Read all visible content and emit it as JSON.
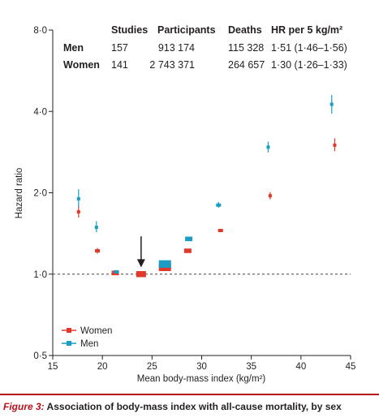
{
  "chart_data": {
    "type": "scatter",
    "xlabel": "Mean body-mass index (kg/m²)",
    "ylabel": "Hazard ratio",
    "xlim": [
      15,
      45
    ],
    "ylim": [
      0.5,
      8.0
    ],
    "yscale": "log",
    "xticks": [
      15,
      20,
      25,
      30,
      35,
      40,
      45
    ],
    "yticks": [
      {
        "value": 0.5,
        "label": "0·5"
      },
      {
        "value": 1.0,
        "label": "1·0"
      },
      {
        "value": 2.0,
        "label": "2·0"
      },
      {
        "value": 4.0,
        "label": "4·0"
      },
      {
        "value": 8.0,
        "label": "8·0"
      }
    ],
    "reference_line": 1.0,
    "legend": {
      "position": "bottom-left"
    },
    "series": [
      {
        "name": "Women",
        "color": "#e03a2b",
        "points": [
          {
            "x": 17.6,
            "y": 1.7,
            "lo": 1.62,
            "hi": 1.79,
            "size": 1
          },
          {
            "x": 19.5,
            "y": 1.22,
            "lo": 1.19,
            "hi": 1.25,
            "size": 2
          },
          {
            "x": 21.3,
            "y": 1.01,
            "lo": 1.0,
            "hi": 1.02,
            "size": 3
          },
          {
            "x": 23.9,
            "y": 1.0,
            "lo": 1.0,
            "hi": 1.0,
            "size": 4
          },
          {
            "x": 26.3,
            "y": 1.06,
            "lo": 1.05,
            "hi": 1.07,
            "size": 5
          },
          {
            "x": 28.6,
            "y": 1.22,
            "lo": 1.21,
            "hi": 1.23,
            "size": 3
          },
          {
            "x": 31.9,
            "y": 1.45,
            "lo": 1.43,
            "hi": 1.47,
            "size": 2
          },
          {
            "x": 36.9,
            "y": 1.95,
            "lo": 1.89,
            "hi": 2.01,
            "size": 1
          },
          {
            "x": 43.4,
            "y": 3.0,
            "lo": 2.85,
            "hi": 3.18,
            "size": 1
          }
        ]
      },
      {
        "name": "Men",
        "color": "#1a9cc4",
        "points": [
          {
            "x": 17.6,
            "y": 1.9,
            "lo": 1.77,
            "hi": 2.06,
            "size": 1
          },
          {
            "x": 19.4,
            "y": 1.49,
            "lo": 1.43,
            "hi": 1.57,
            "size": 1
          },
          {
            "x": 21.4,
            "y": 1.02,
            "lo": 1.01,
            "hi": 1.03,
            "size": 2
          },
          {
            "x": 26.3,
            "y": 1.09,
            "lo": 1.08,
            "hi": 1.1,
            "size": 5
          },
          {
            "x": 28.7,
            "y": 1.35,
            "lo": 1.34,
            "hi": 1.36,
            "size": 3
          },
          {
            "x": 31.7,
            "y": 1.8,
            "lo": 1.76,
            "hi": 1.85,
            "size": 2
          },
          {
            "x": 36.7,
            "y": 2.95,
            "lo": 2.82,
            "hi": 3.09,
            "size": 1
          },
          {
            "x": 43.1,
            "y": 4.25,
            "lo": 3.92,
            "hi": 4.6,
            "size": 1
          }
        ]
      }
    ],
    "annotation": {
      "type": "arrow-down",
      "x": 23.9,
      "y_top": 1.38,
      "y_bottom": 1.06
    }
  },
  "table": {
    "headers": [
      "Studies",
      "Participants",
      "Deaths",
      "HR per 5 kg/m²"
    ],
    "rows": [
      {
        "label": "Men",
        "studies": "157",
        "participants": "913 174",
        "deaths": "115 328",
        "hr": "1·51 (1·46–1·56)"
      },
      {
        "label": "Women",
        "studies": "141",
        "participants": "2 743 371",
        "deaths": "264 657",
        "hr": "1·30 (1·26–1·33)"
      }
    ]
  },
  "caption": {
    "label": "Figure 3:",
    "text": " Association of body-mass index with all-cause mortality, by sex"
  }
}
